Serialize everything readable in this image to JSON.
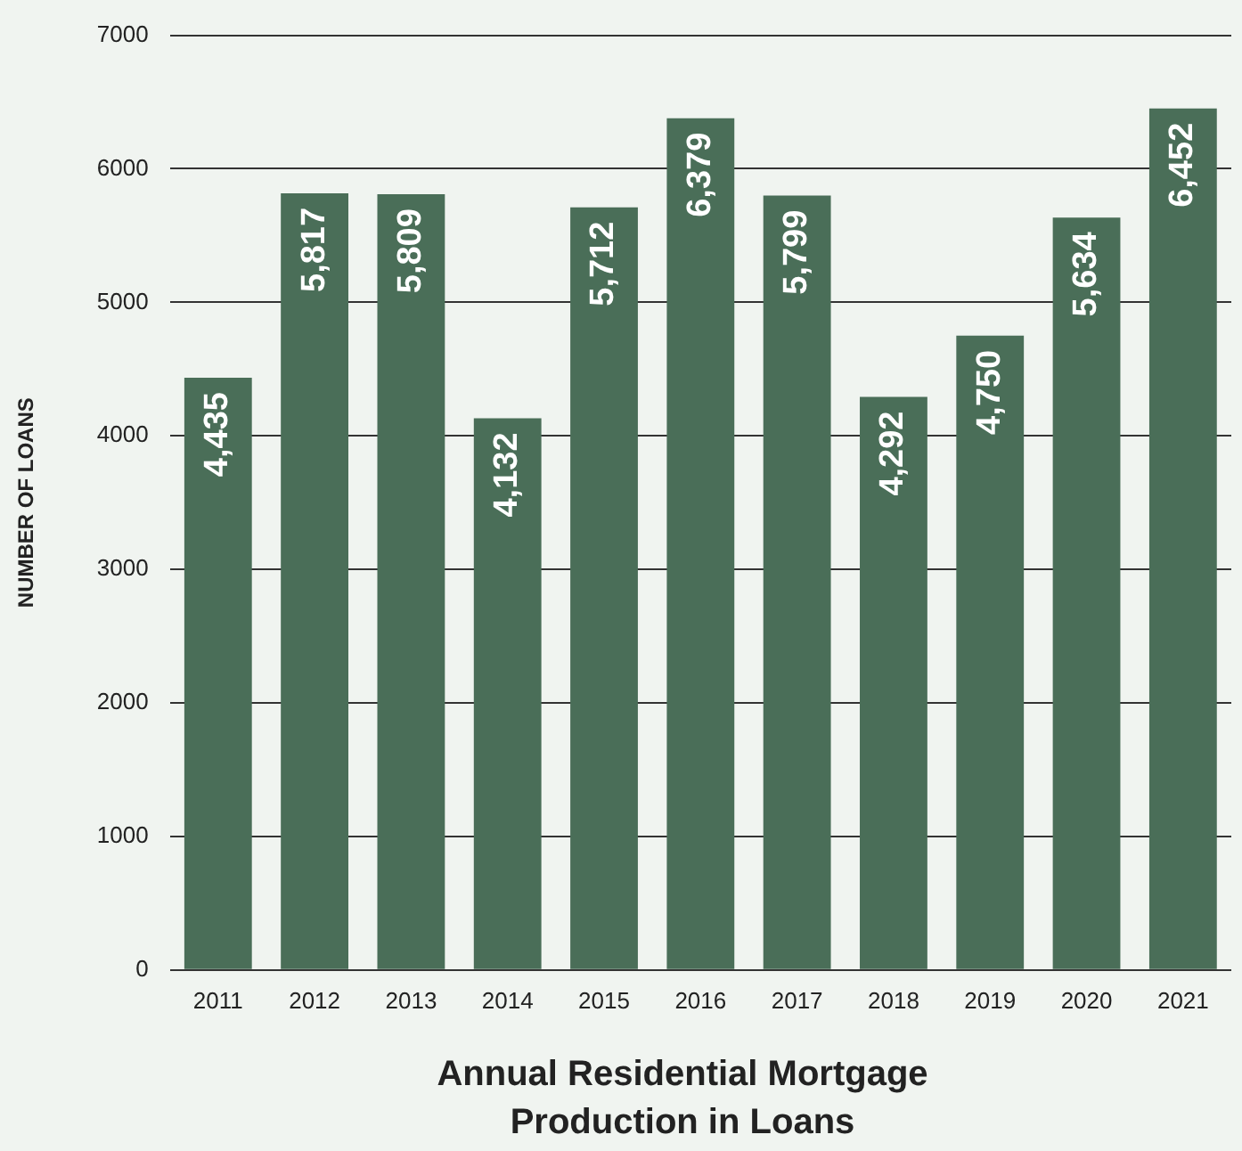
{
  "chart_data": {
    "type": "bar",
    "title": "Annual Residential Mortgage Production in Loans",
    "ylabel": "NUMBER OF LOANS",
    "categories": [
      "2011",
      "2012",
      "2013",
      "2014",
      "2015",
      "2016",
      "2017",
      "2018",
      "2019",
      "2020",
      "2021"
    ],
    "values": [
      4435,
      5817,
      5809,
      4132,
      5712,
      6379,
      5799,
      4292,
      4750,
      5634,
      6452
    ],
    "color": "#4a6e58",
    "ylim": [
      0,
      7000
    ],
    "yticks": [
      0,
      1000,
      2000,
      3000,
      4000,
      5000,
      6000,
      7000
    ],
    "value_labels": [
      "4,435",
      "5,817",
      "5,809",
      "4,132",
      "5,712",
      "6,379",
      "5,799",
      "4,292",
      "4,750",
      "5,634",
      "6,452"
    ],
    "grid": "y"
  }
}
